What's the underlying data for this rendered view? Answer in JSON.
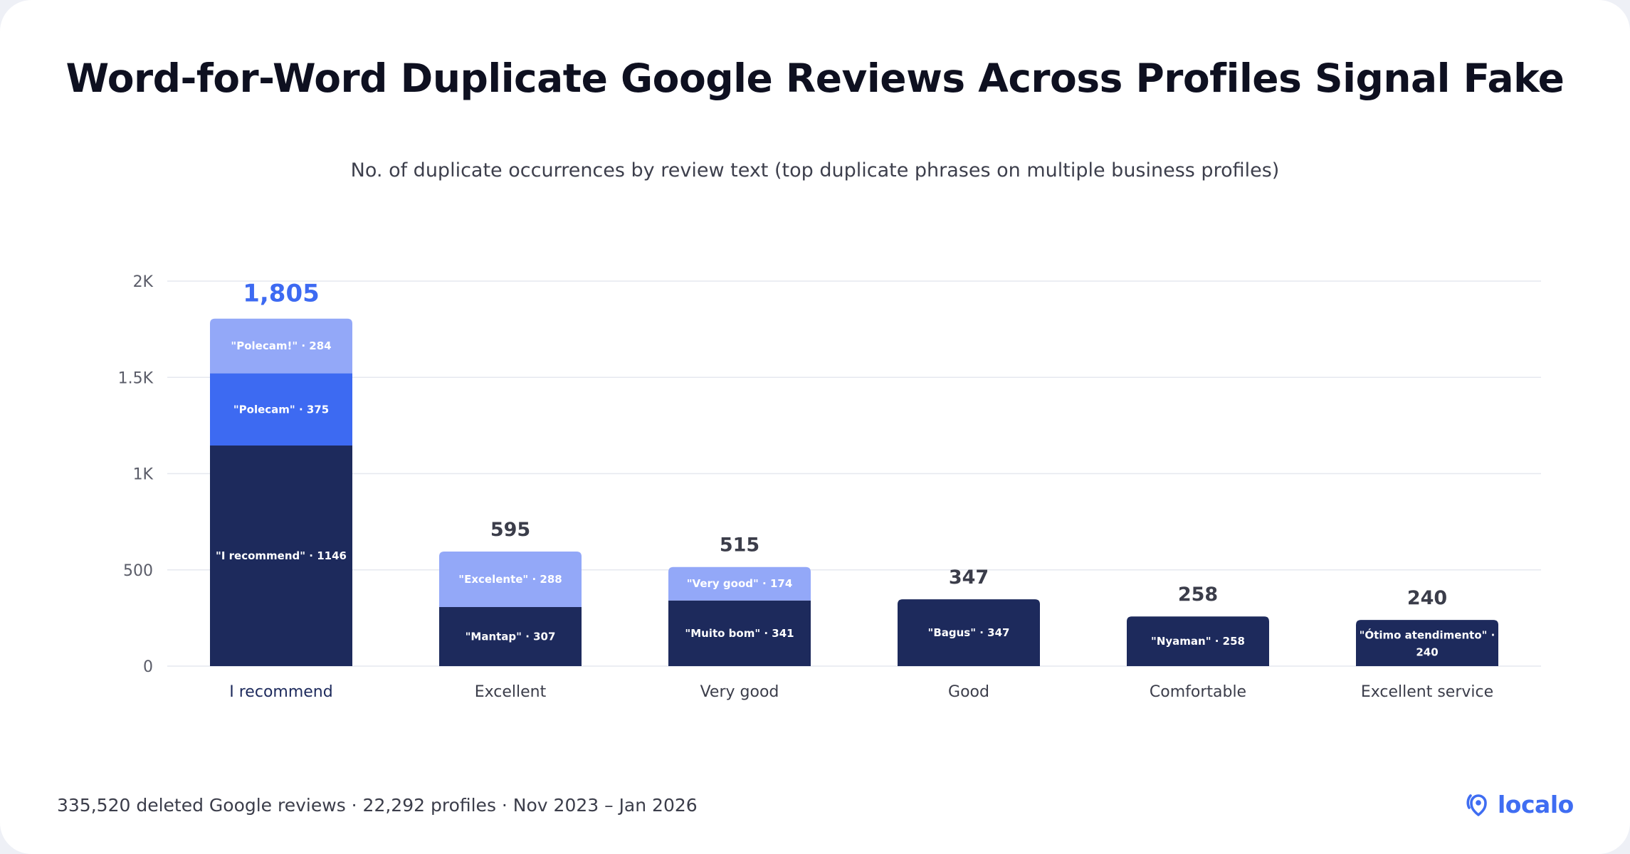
{
  "title": "Word-for-Word Duplicate Google Reviews Across Profiles Signal Fake",
  "subtitle": "No. of duplicate occurrences by review text (top duplicate phrases on multiple business profiles)",
  "footer": "335,520 deleted Google reviews · 22,292 profiles · Nov 2023 – Jan 2026",
  "logo": {
    "text": "localo",
    "icon": "location-pin-icon",
    "color": "#3f6df2"
  },
  "colors": {
    "navy": "#1d2a5c",
    "blue": "#3d6af2",
    "light_blue": "#93a8f8",
    "highlight_total": "#3d6af2",
    "total": "#3b3d4a",
    "grid": "#e6e8ef"
  },
  "chart_data": {
    "type": "bar",
    "stacked": true,
    "categories": [
      "I recommend",
      "Excellent",
      "Very good",
      "Good",
      "Comfortable",
      "Excellent service"
    ],
    "highlight_category": "I recommend",
    "ylim": [
      0,
      2000
    ],
    "yticks": [
      0,
      500,
      1000,
      1500,
      2000
    ],
    "ytick_labels": [
      "0",
      "500",
      "1K",
      "1.5K",
      "2K"
    ],
    "grid": true,
    "totals": [
      1805,
      595,
      515,
      347,
      258,
      240
    ],
    "total_labels": [
      "1,805",
      "595",
      "515",
      "347",
      "258",
      "240"
    ],
    "segments": [
      [
        {
          "label": "\"I recommend\" · 1146",
          "value": 1146,
          "color": "#1d2a5c"
        },
        {
          "label": "\"Polecam\" · 375",
          "value": 375,
          "color": "#3d6af2"
        },
        {
          "label": "\"Polecam!\" · 284",
          "value": 284,
          "color": "#93a8f8"
        }
      ],
      [
        {
          "label": "\"Mantap\" · 307",
          "value": 307,
          "color": "#1d2a5c"
        },
        {
          "label": "\"Excelente\" · 288",
          "value": 288,
          "color": "#93a8f8"
        }
      ],
      [
        {
          "label": "\"Muito bom\" · 341",
          "value": 341,
          "color": "#1d2a5c"
        },
        {
          "label": "\"Very good\" · 174",
          "value": 174,
          "color": "#93a8f8"
        }
      ],
      [
        {
          "label": "\"Bagus\" · 347",
          "value": 347,
          "color": "#1d2a5c"
        }
      ],
      [
        {
          "label": "\"Nyaman\" · 258",
          "value": 258,
          "color": "#1d2a5c"
        }
      ],
      [
        {
          "label": "\"Ótimo atendimento\" ·",
          "label2": "240",
          "value": 240,
          "color": "#1d2a5c"
        }
      ]
    ]
  }
}
